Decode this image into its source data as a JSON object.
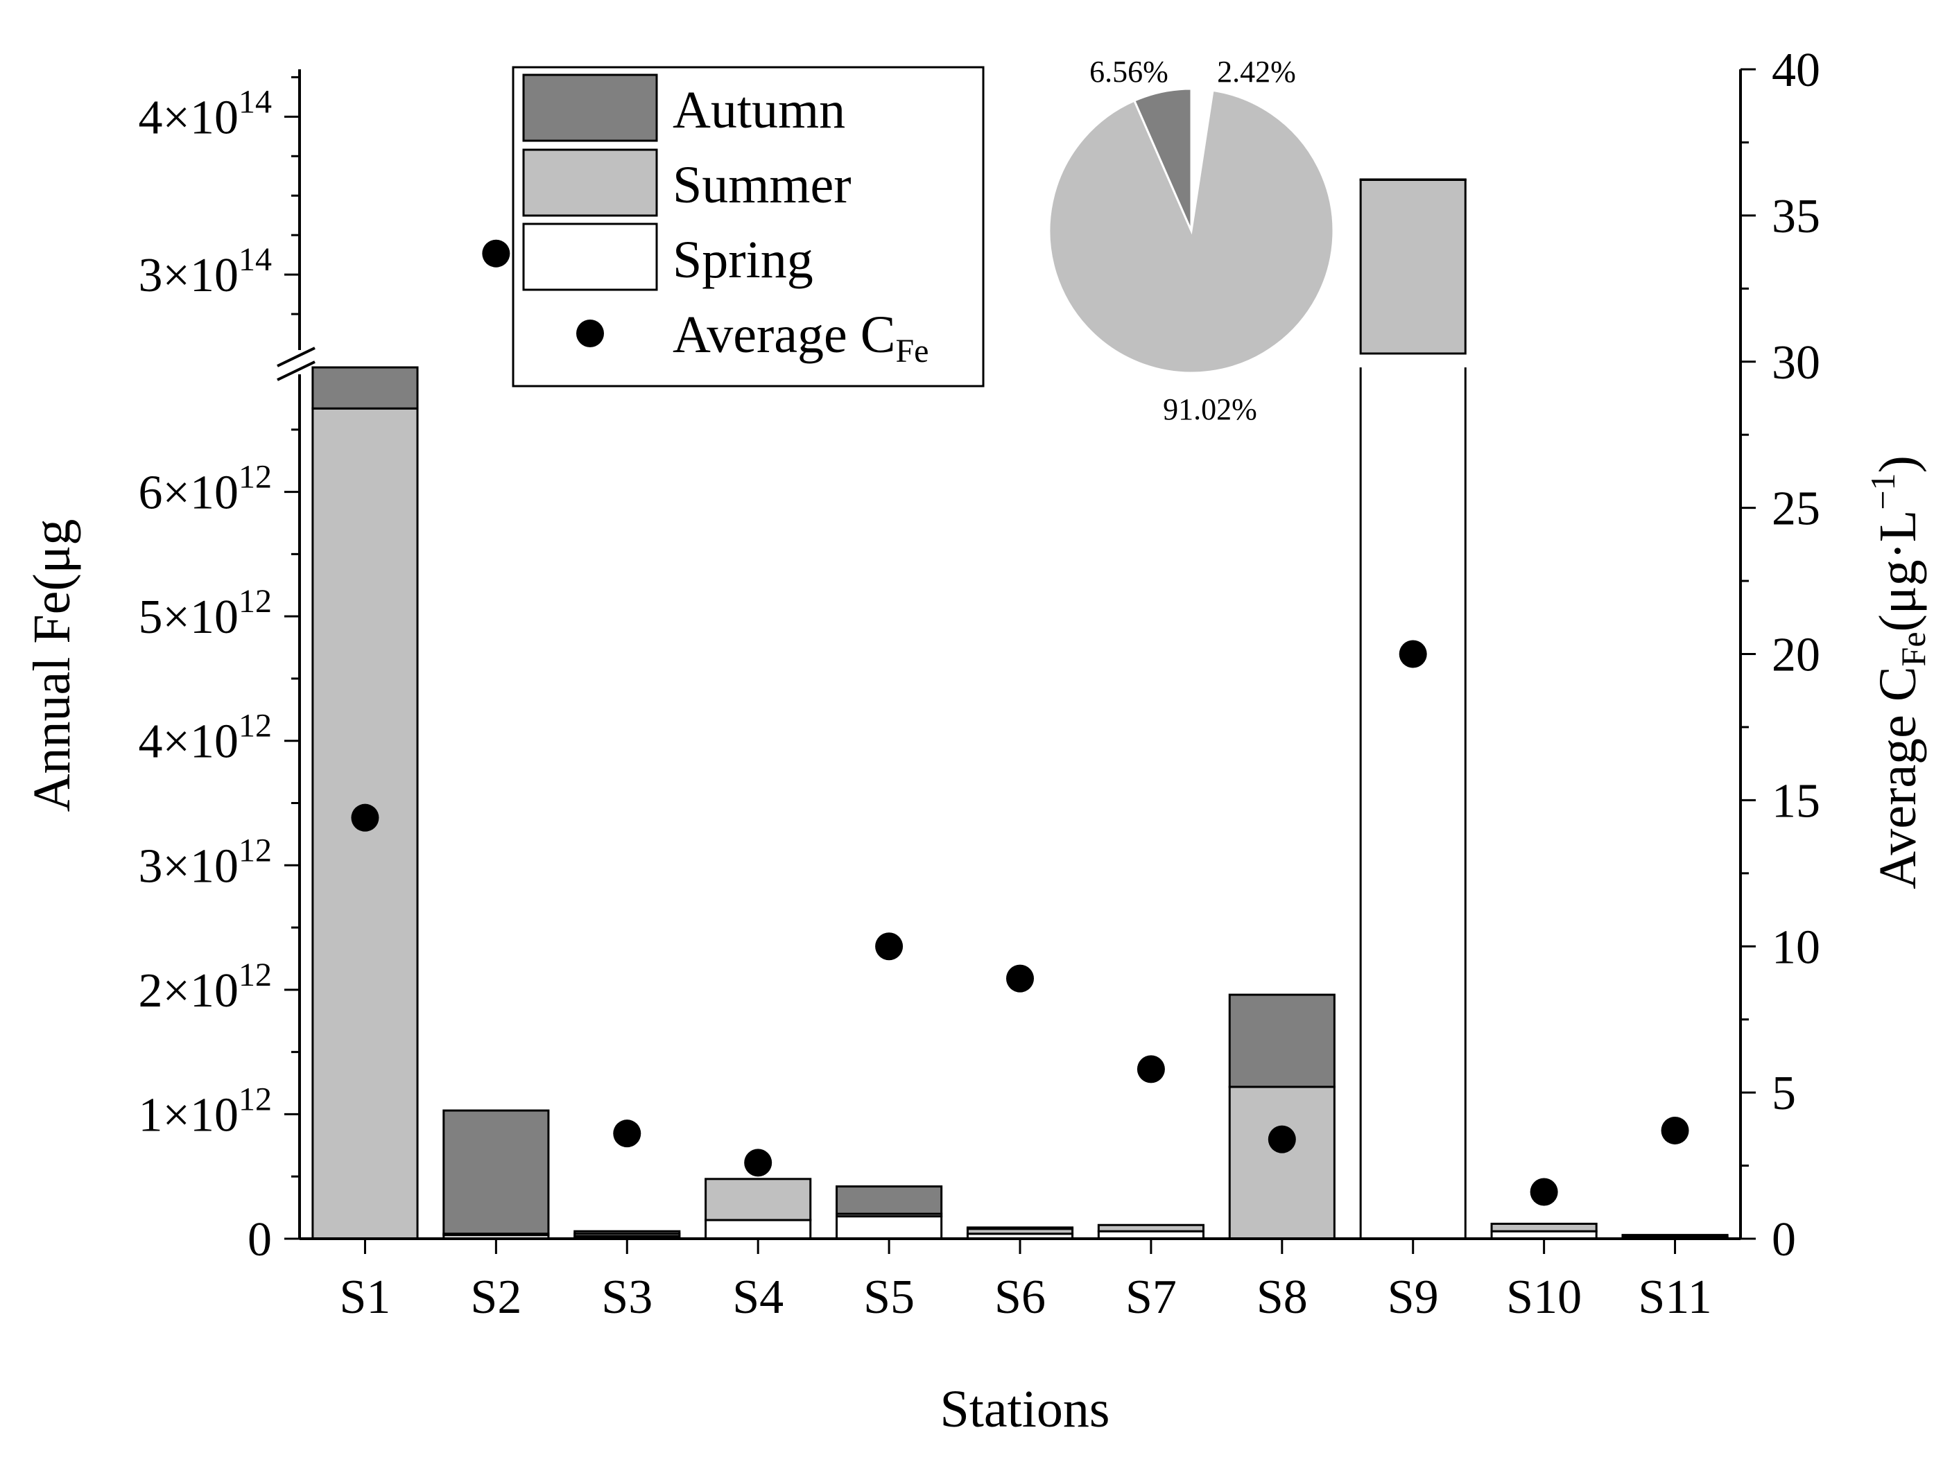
{
  "chart_data": {
    "type": "bar",
    "stacked": true,
    "x_title": "Stations",
    "y_left_title": "Annual Fe(μg",
    "y_right_title_main": "Average C",
    "y_right_title_sub": "Fe",
    "y_right_title_unit": "(μg·L",
    "y_right_title_sup": "−1",
    "y_right_title_close": ")",
    "categories": [
      "S1",
      "S2",
      "S3",
      "S4",
      "S5",
      "S6",
      "S7",
      "S8",
      "S9",
      "S10",
      "S11"
    ],
    "series": [
      {
        "name": "Spring",
        "color": "#ffffff",
        "values": [
          0,
          30000000000.0,
          20000000000.0,
          150000000000.0,
          180000000000.0,
          40000000000.0,
          60000000000.0,
          0,
          130000000000000.0,
          60000000000.0,
          10000000000.0
        ]
      },
      {
        "name": "Summer",
        "color": "#c0c0c0",
        "values": [
          6670000000000.0,
          10000000000.0,
          20000000000.0,
          330000000000.0,
          20000000000.0,
          40000000000.0,
          50000000000.0,
          1220000000000.0,
          230000000000000.0,
          60000000000.0,
          10000000000.0
        ]
      },
      {
        "name": "Autumn",
        "color": "#808080",
        "values": [
          330000000000.0,
          990000000000.0,
          20000000000.0,
          0,
          220000000000.0,
          10000000000.0,
          0,
          740000000000.0,
          240000000000.0,
          0,
          10000000000.0
        ]
      }
    ],
    "average_cfe": {
      "name": "Average C",
      "name_sub": "Fe",
      "values": [
        14.4,
        33.7,
        3.6,
        2.6,
        10.0,
        8.9,
        5.8,
        3.4,
        20.0,
        1.6,
        3.7
      ]
    },
    "y_left_lower_ticks": [
      {
        "value": 0,
        "mant": "0",
        "exp": ""
      },
      {
        "value": 1000000000000.0,
        "mant": "1×10",
        "exp": "12"
      },
      {
        "value": 2000000000000.0,
        "mant": "2×10",
        "exp": "12"
      },
      {
        "value": 3000000000000.0,
        "mant": "3×10",
        "exp": "12"
      },
      {
        "value": 4000000000000.0,
        "mant": "4×10",
        "exp": "12"
      },
      {
        "value": 5000000000000.0,
        "mant": "5×10",
        "exp": "12"
      },
      {
        "value": 6000000000000.0,
        "mant": "6×10",
        "exp": "12"
      }
    ],
    "y_left_upper_ticks": [
      {
        "value": 300000000000000.0,
        "mant": "3×10",
        "exp": "14"
      },
      {
        "value": 400000000000000.0,
        "mant": "4×10",
        "exp": "14"
      }
    ],
    "y_left_lower_range": [
      0,
      7000000000000.0
    ],
    "y_left_upper_range": [
      250000000000000.0,
      430000000000000.0
    ],
    "y_right_range": [
      0,
      40
    ],
    "y_right_ticks": [
      "0",
      "5",
      "10",
      "15",
      "20",
      "25",
      "30",
      "35",
      "40"
    ],
    "legend_position": "top",
    "pie": {
      "slices": [
        {
          "label": "2.42%",
          "value": 2.42,
          "color": "#ffffff"
        },
        {
          "label": "91.02%",
          "value": 91.02,
          "color": "#c0c0c0"
        },
        {
          "label": "6.56%",
          "value": 6.56,
          "color": "#808080"
        }
      ]
    }
  }
}
